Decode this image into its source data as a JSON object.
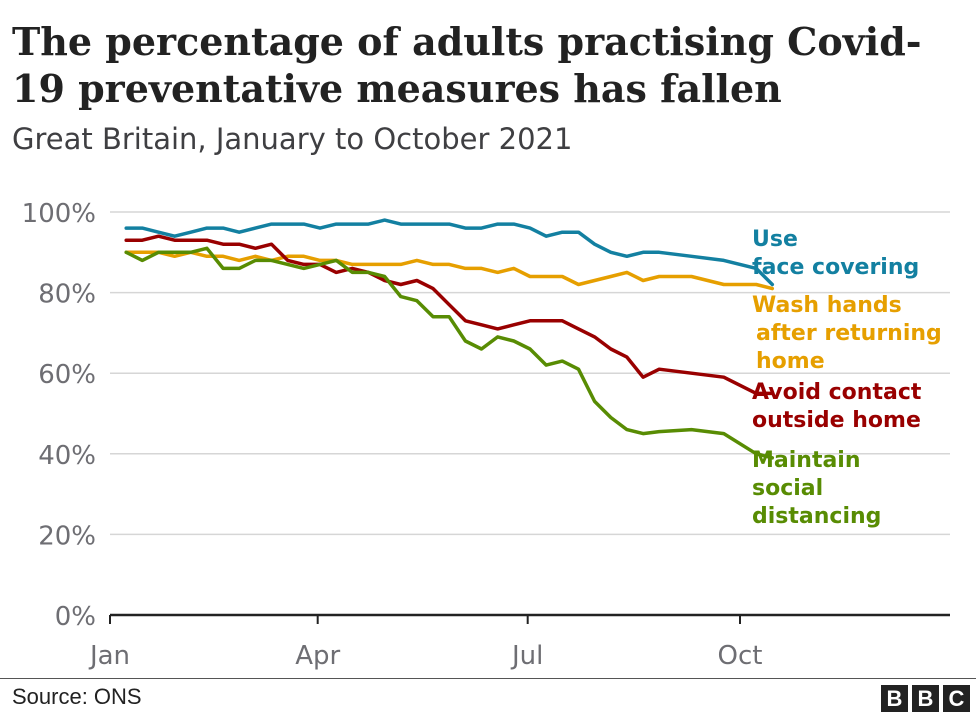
{
  "chart_data": {
    "type": "line",
    "title": "The percentage of adults practising Covid-19 preventative measures has fallen",
    "subtitle": "Great Britain, January to October 2021",
    "x_tick_labels": [
      "Jan",
      "Apr",
      "Jul",
      "Oct"
    ],
    "y_tick_labels": [
      "100%",
      "80%",
      "60%",
      "40%",
      "20%",
      "0%"
    ],
    "y_ticks": [
      100,
      80,
      60,
      40,
      20,
      0
    ],
    "ylim": [
      0,
      100
    ],
    "xlim": [
      "2021-01-01",
      "2021-12-31"
    ],
    "grid": true,
    "series": [
      {
        "name": "Use face covering",
        "label_lines": [
          "Use",
          "face covering"
        ],
        "color": "#1380a1",
        "dates": [
          "2021-01-08",
          "2021-01-15",
          "2021-01-22",
          "2021-01-29",
          "2021-02-05",
          "2021-02-12",
          "2021-02-19",
          "2021-02-26",
          "2021-03-05",
          "2021-03-12",
          "2021-03-19",
          "2021-03-26",
          "2021-04-02",
          "2021-04-09",
          "2021-04-16",
          "2021-04-23",
          "2021-04-30",
          "2021-05-07",
          "2021-05-14",
          "2021-05-21",
          "2021-05-28",
          "2021-06-04",
          "2021-06-11",
          "2021-06-18",
          "2021-06-25",
          "2021-07-02",
          "2021-07-09",
          "2021-07-16",
          "2021-07-23",
          "2021-07-30",
          "2021-08-06",
          "2021-08-13",
          "2021-08-20",
          "2021-08-27",
          "2021-09-10",
          "2021-09-24",
          "2021-10-08",
          "2021-10-15"
        ],
        "values": [
          96,
          96,
          95,
          94,
          95,
          96,
          96,
          95,
          96,
          97,
          97,
          97,
          96,
          97,
          97,
          97,
          98,
          97,
          97,
          97,
          97,
          96,
          96,
          97,
          97,
          96,
          94,
          95,
          95,
          92,
          90,
          89,
          90,
          90,
          89,
          88,
          86,
          82
        ]
      },
      {
        "name": "Wash hands after returning home",
        "label_lines": [
          "Wash hands",
          "after returning",
          "home"
        ],
        "color": "#e69f00",
        "dates": [
          "2021-01-08",
          "2021-01-15",
          "2021-01-22",
          "2021-01-29",
          "2021-02-05",
          "2021-02-12",
          "2021-02-19",
          "2021-02-26",
          "2021-03-05",
          "2021-03-12",
          "2021-03-19",
          "2021-03-26",
          "2021-04-02",
          "2021-04-09",
          "2021-04-16",
          "2021-04-23",
          "2021-04-30",
          "2021-05-07",
          "2021-05-14",
          "2021-05-21",
          "2021-05-28",
          "2021-06-04",
          "2021-06-11",
          "2021-06-18",
          "2021-06-25",
          "2021-07-02",
          "2021-07-09",
          "2021-07-16",
          "2021-07-23",
          "2021-07-30",
          "2021-08-06",
          "2021-08-13",
          "2021-08-20",
          "2021-08-27",
          "2021-09-10",
          "2021-09-24",
          "2021-10-08",
          "2021-10-15"
        ],
        "values": [
          90,
          90,
          90,
          89,
          90,
          89,
          89,
          88,
          89,
          88,
          89,
          89,
          88,
          88,
          87,
          87,
          87,
          87,
          88,
          87,
          87,
          86,
          86,
          85,
          86,
          84,
          84,
          84,
          82,
          83,
          84,
          85,
          83,
          84,
          84,
          82,
          82,
          81
        ]
      },
      {
        "name": "Avoid contact outside home",
        "label_lines": [
          "Avoid contact",
          "outside home"
        ],
        "color": "#990000",
        "dates": [
          "2021-01-08",
          "2021-01-15",
          "2021-01-22",
          "2021-01-29",
          "2021-02-05",
          "2021-02-12",
          "2021-02-19",
          "2021-02-26",
          "2021-03-05",
          "2021-03-12",
          "2021-03-19",
          "2021-03-26",
          "2021-04-02",
          "2021-04-09",
          "2021-04-16",
          "2021-04-23",
          "2021-04-30",
          "2021-05-07",
          "2021-05-14",
          "2021-05-21",
          "2021-05-28",
          "2021-06-04",
          "2021-06-11",
          "2021-06-18",
          "2021-06-25",
          "2021-07-02",
          "2021-07-09",
          "2021-07-16",
          "2021-07-23",
          "2021-07-30",
          "2021-08-06",
          "2021-08-13",
          "2021-08-20",
          "2021-08-27",
          "2021-09-10",
          "2021-09-24",
          "2021-10-08",
          "2021-10-15"
        ],
        "values": [
          93,
          93,
          94,
          93,
          93,
          93,
          92,
          92,
          91,
          92,
          88,
          87,
          87,
          85,
          86,
          85,
          83,
          82,
          83,
          81,
          77,
          73,
          72,
          71,
          72,
          73,
          73,
          73,
          71,
          69,
          66,
          64,
          59,
          61,
          60,
          59,
          55,
          55
        ]
      },
      {
        "name": "Maintain social distancing",
        "label_lines": [
          "Maintain",
          "social",
          "distancing"
        ],
        "color": "#588c03",
        "dates": [
          "2021-01-08",
          "2021-01-15",
          "2021-01-22",
          "2021-01-29",
          "2021-02-05",
          "2021-02-12",
          "2021-02-19",
          "2021-02-26",
          "2021-03-05",
          "2021-03-12",
          "2021-03-19",
          "2021-03-26",
          "2021-04-02",
          "2021-04-09",
          "2021-04-16",
          "2021-04-23",
          "2021-04-30",
          "2021-05-07",
          "2021-05-14",
          "2021-05-21",
          "2021-05-28",
          "2021-06-04",
          "2021-06-11",
          "2021-06-18",
          "2021-06-25",
          "2021-07-02",
          "2021-07-09",
          "2021-07-16",
          "2021-07-23",
          "2021-07-30",
          "2021-08-06",
          "2021-08-13",
          "2021-08-20",
          "2021-08-27",
          "2021-09-10",
          "2021-09-24",
          "2021-10-08",
          "2021-10-15"
        ],
        "values": [
          90,
          88,
          90,
          90,
          90,
          91,
          86,
          86,
          88,
          88,
          87,
          86,
          87,
          88,
          85,
          85,
          84,
          79,
          78,
          74,
          74,
          68,
          66,
          69,
          68,
          66,
          62,
          63,
          61,
          53,
          49,
          46,
          45,
          45.5,
          46,
          45,
          40,
          39
        ]
      }
    ]
  },
  "source_label": "Source: ONS",
  "logo_letters": [
    "B",
    "B",
    "C"
  ]
}
